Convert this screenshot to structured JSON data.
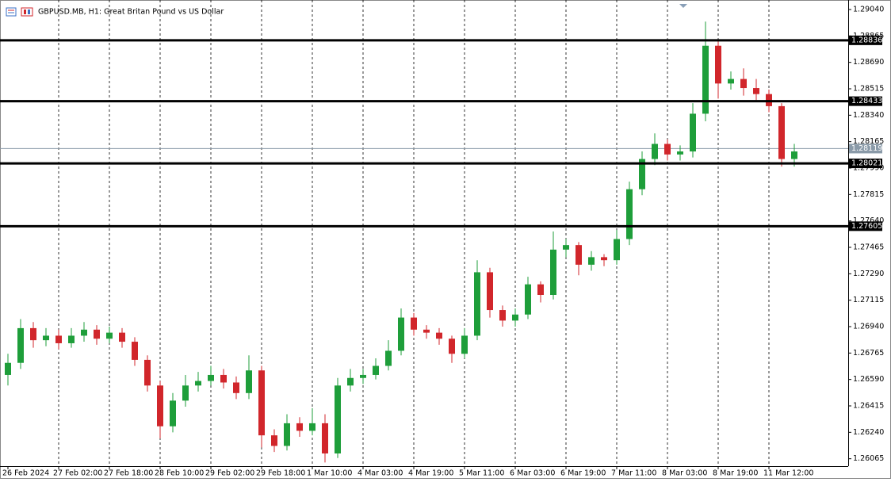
{
  "chart_data": {
    "type": "candlestick",
    "title": "GBPUSD.MB, H1:  Great Britan Pound vs US Dollar",
    "categories": [
      "26 Feb 2024",
      null,
      null,
      null,
      "27 Feb 02:00",
      null,
      null,
      null,
      "27 Feb 18:00",
      null,
      null,
      null,
      "28 Feb 10:00",
      null,
      null,
      null,
      "29 Feb 02:00",
      null,
      null,
      null,
      "29 Feb 18:00",
      null,
      null,
      null,
      "1 Mar 10:00",
      null,
      null,
      null,
      "4 Mar 03:00",
      null,
      null,
      null,
      "4 Mar 19:00",
      null,
      null,
      null,
      "5 Mar 11:00",
      null,
      null,
      null,
      "6 Mar 03:00",
      null,
      null,
      null,
      "6 Mar 19:00",
      null,
      null,
      null,
      "7 Mar 11:00",
      null,
      null,
      null,
      "8 Mar 03:00",
      null,
      null,
      null,
      "8 Mar 19:00",
      null,
      null,
      null,
      "11 Mar 12:00",
      null,
      null
    ],
    "open": [
      1.2662,
      1.267,
      1.2693,
      1.2685,
      1.2688,
      1.2683,
      1.2688,
      1.2692,
      1.2686,
      1.269,
      1.2684,
      1.2672,
      1.2655,
      1.2628,
      1.2645,
      1.2655,
      1.2658,
      1.2662,
      1.2657,
      1.265,
      1.2665,
      1.2622,
      1.2615,
      1.263,
      1.2625,
      1.263,
      1.261,
      1.2655,
      1.266,
      1.2662,
      1.2668,
      1.2678,
      1.27,
      1.2692,
      1.269,
      1.2686,
      1.2676,
      1.2688,
      1.273,
      1.2705,
      1.2698,
      1.2702,
      1.2722,
      1.2715,
      1.2745,
      1.2748,
      1.2735,
      1.274,
      1.2738,
      1.2752,
      1.2785,
      1.2805,
      1.2815,
      1.2808,
      1.281,
      1.2835,
      1.288,
      1.2855,
      1.2858,
      1.2852,
      1.2848,
      1.284,
      1.2805
    ],
    "high": [
      1.2676,
      1.2699,
      1.2697,
      1.2693,
      1.2692,
      1.2693,
      1.2697,
      1.2695,
      1.2694,
      1.2693,
      1.2687,
      1.2675,
      1.2658,
      1.265,
      1.2662,
      1.2664,
      1.2668,
      1.2666,
      1.2661,
      1.2675,
      1.2668,
      1.2626,
      1.2636,
      1.2634,
      1.264,
      1.2636,
      1.266,
      1.2666,
      1.2666,
      1.2673,
      1.2685,
      1.2706,
      1.2703,
      1.2695,
      1.2693,
      1.2688,
      1.2693,
      1.2738,
      1.2733,
      1.2708,
      1.2706,
      1.2727,
      1.2724,
      1.2757,
      1.2752,
      1.275,
      1.2744,
      1.2742,
      1.2758,
      1.279,
      1.281,
      1.2822,
      1.2818,
      1.2814,
      1.2842,
      1.2896,
      1.2883,
      1.2863,
      1.2865,
      1.2858,
      1.2851,
      1.2842,
      1.2815
    ],
    "low": [
      1.2655,
      1.2666,
      1.268,
      1.2681,
      1.2679,
      1.268,
      1.2684,
      1.2682,
      1.2683,
      1.268,
      1.2668,
      1.2651,
      1.262,
      1.2624,
      1.2641,
      1.2651,
      1.2655,
      1.2653,
      1.2646,
      1.2646,
      1.2614,
      1.2611,
      1.2612,
      1.2621,
      1.2622,
      1.2604,
      1.2607,
      1.2651,
      1.2656,
      1.2659,
      1.2665,
      1.2675,
      1.2688,
      1.2686,
      1.2682,
      1.267,
      1.2673,
      1.2685,
      1.27,
      1.2694,
      1.2694,
      1.2699,
      1.271,
      1.2712,
      1.274,
      1.2728,
      1.2731,
      1.2734,
      1.2735,
      1.2748,
      1.2781,
      1.2801,
      1.2804,
      1.2804,
      1.2806,
      1.283,
      1.2845,
      1.2851,
      1.2847,
      1.2844,
      1.2836,
      1.28,
      1.28
    ],
    "close": [
      1.267,
      1.2693,
      1.2685,
      1.2688,
      1.2683,
      1.2688,
      1.2692,
      1.2686,
      1.269,
      1.2684,
      1.2672,
      1.2655,
      1.2628,
      1.2645,
      1.2655,
      1.2658,
      1.2662,
      1.2657,
      1.265,
      1.2665,
      1.2622,
      1.2615,
      1.263,
      1.2625,
      1.263,
      1.261,
      1.2655,
      1.266,
      1.2662,
      1.2668,
      1.2678,
      1.27,
      1.2692,
      1.269,
      1.2686,
      1.2676,
      1.2688,
      1.273,
      1.2705,
      1.2698,
      1.2702,
      1.2722,
      1.2715,
      1.2745,
      1.2748,
      1.2735,
      1.274,
      1.2738,
      1.2752,
      1.2785,
      1.2805,
      1.2815,
      1.2808,
      1.281,
      1.2835,
      1.288,
      1.2855,
      1.2858,
      1.2852,
      1.2848,
      1.284,
      1.2805,
      1.281
    ],
    "up_color": "#1e9e3a",
    "down_color": "#d1262b",
    "ylim": [
      1.26016,
      1.29103
    ],
    "yticks": [
      {
        "value": 1.2904,
        "label": "1.29040"
      },
      1.28865,
      {
        "value": 1.2869,
        "label": "1.28690"
      },
      1.28515,
      {
        "value": 1.2834,
        "label": "1.28340"
      },
      1.28165,
      {
        "value": 1.2799,
        "label": "1.27990"
      },
      1.27815,
      {
        "value": 1.2764,
        "label": "1.27640"
      },
      1.27465,
      {
        "value": 1.2729,
        "label": "1.27290"
      },
      1.27115,
      {
        "value": 1.2694,
        "label": "1.26940"
      },
      1.26765,
      {
        "value": 1.2659,
        "label": "1.26590"
      },
      1.26415,
      {
        "value": 1.2624,
        "label": "1.26240"
      },
      1.26065
    ],
    "levels": [
      1.28836,
      1.28433,
      1.28021,
      1.27605
    ],
    "current_price": 1.28119,
    "grid": true
  }
}
